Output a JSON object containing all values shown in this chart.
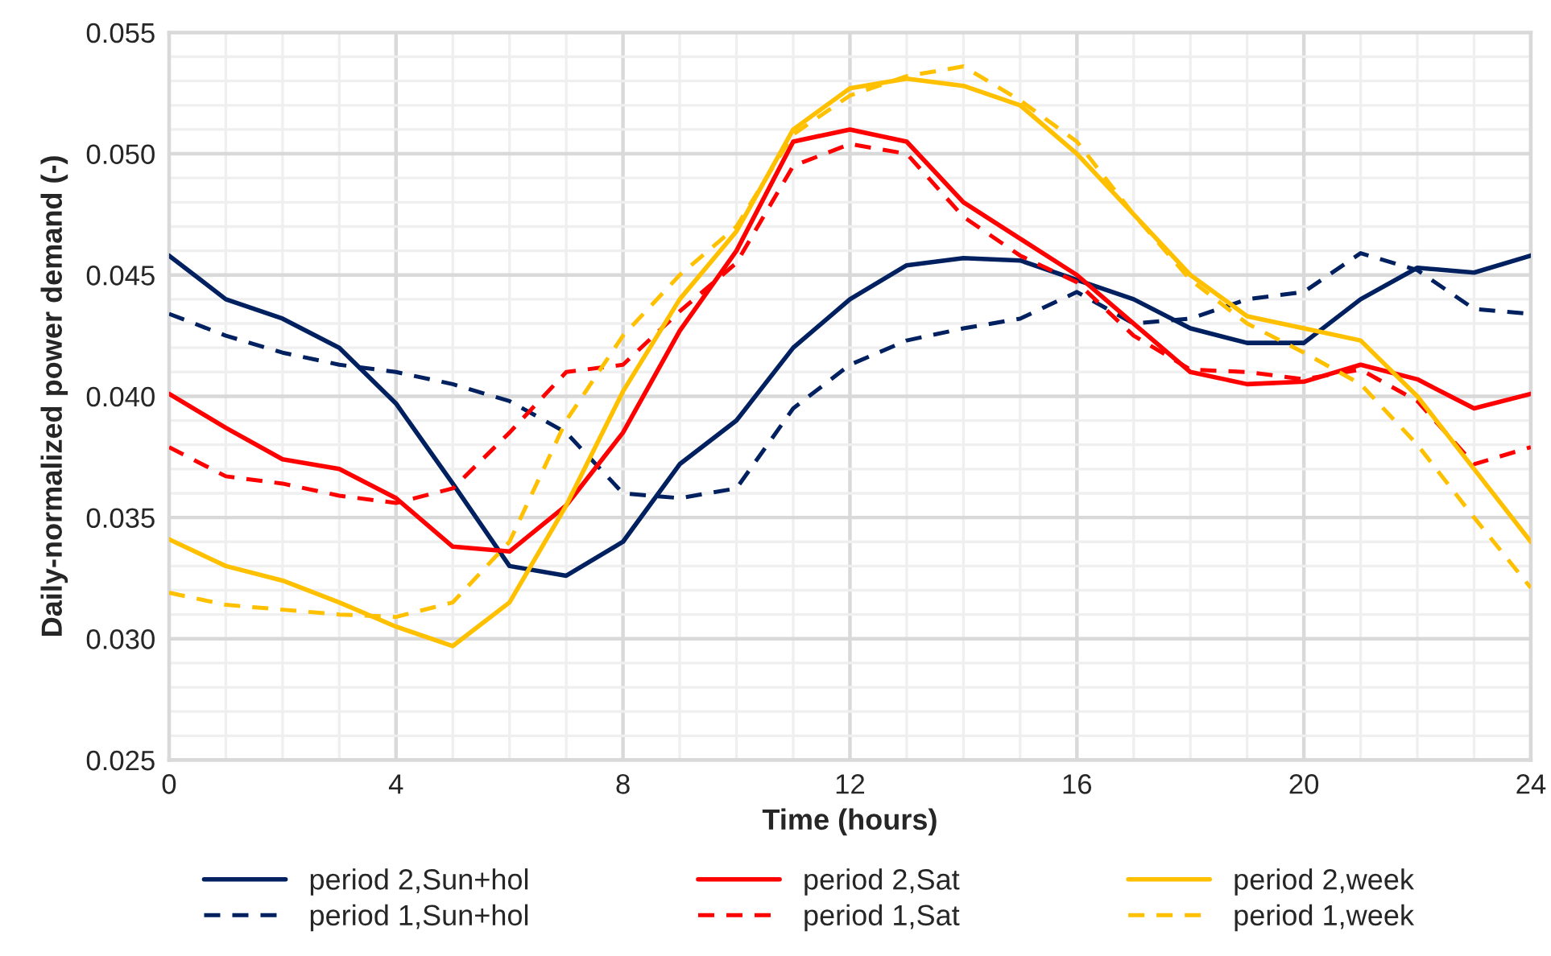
{
  "chart_data": {
    "type": "line",
    "xlabel": "Time (hours)",
    "ylabel": "Daily-normalized power demand (-)",
    "x": [
      0,
      1,
      2,
      3,
      4,
      5,
      6,
      7,
      8,
      9,
      10,
      11,
      12,
      13,
      14,
      15,
      16,
      17,
      18,
      19,
      20,
      21,
      22,
      23,
      24
    ],
    "series": [
      {
        "name": "period 2,Sun+hol",
        "color": "#002060",
        "line_style": "solid",
        "values": [
          0.0458,
          0.044,
          0.0432,
          0.042,
          0.0397,
          0.0364,
          0.033,
          0.0326,
          0.034,
          0.0372,
          0.039,
          0.042,
          0.044,
          0.0454,
          0.0457,
          0.0456,
          0.0448,
          0.044,
          0.0428,
          0.0422,
          0.0422,
          0.044,
          0.0453,
          0.0451,
          0.0458
        ]
      },
      {
        "name": "period 1,Sun+hol",
        "color": "#002060",
        "line_style": "dashed",
        "values": [
          0.0434,
          0.0425,
          0.0418,
          0.0413,
          0.041,
          0.0405,
          0.0398,
          0.0385,
          0.036,
          0.0358,
          0.0362,
          0.0395,
          0.0413,
          0.0423,
          0.0428,
          0.0432,
          0.0443,
          0.043,
          0.0432,
          0.044,
          0.0443,
          0.0459,
          0.0452,
          0.0436,
          0.0434
        ]
      },
      {
        "name": "period 2,Sat",
        "color": "#ff0000",
        "line_style": "solid",
        "values": [
          0.0401,
          0.0387,
          0.0374,
          0.037,
          0.0358,
          0.0338,
          0.0336,
          0.0355,
          0.0385,
          0.0427,
          0.046,
          0.0505,
          0.051,
          0.0505,
          0.048,
          0.0465,
          0.045,
          0.043,
          0.041,
          0.0405,
          0.0406,
          0.0413,
          0.0407,
          0.0395,
          0.0401
        ]
      },
      {
        "name": "period 1,Sat",
        "color": "#ff0000",
        "line_style": "dashed",
        "values": [
          0.0379,
          0.0367,
          0.0364,
          0.0359,
          0.0356,
          0.0362,
          0.0385,
          0.041,
          0.0413,
          0.0435,
          0.0455,
          0.0495,
          0.0504,
          0.05,
          0.0474,
          0.0458,
          0.0447,
          0.0425,
          0.0411,
          0.041,
          0.0407,
          0.0411,
          0.0398,
          0.0372,
          0.0379
        ]
      },
      {
        "name": "period 2,week",
        "color": "#ffc000",
        "line_style": "solid",
        "values": [
          0.0341,
          0.033,
          0.0324,
          0.0315,
          0.0305,
          0.0297,
          0.0315,
          0.0355,
          0.0402,
          0.044,
          0.0468,
          0.051,
          0.0527,
          0.0531,
          0.0528,
          0.052,
          0.05,
          0.0475,
          0.045,
          0.0433,
          0.0428,
          0.0423,
          0.04,
          0.037,
          0.034
        ]
      },
      {
        "name": "period 1,week",
        "color": "#ffc000",
        "line_style": "dashed",
        "values": [
          0.0319,
          0.0314,
          0.0312,
          0.031,
          0.0309,
          0.0315,
          0.034,
          0.039,
          0.0425,
          0.045,
          0.047,
          0.0508,
          0.0524,
          0.0532,
          0.0536,
          0.0522,
          0.0505,
          0.0475,
          0.0448,
          0.043,
          0.0418,
          0.0405,
          0.038,
          0.035,
          0.0321
        ]
      }
    ],
    "xlim": [
      0,
      24
    ],
    "xticks": [
      0,
      {
        "value": 1,
        "label": null
      },
      {
        "value": 2,
        "label": null
      },
      {
        "value": 3,
        "label": null
      },
      4,
      {
        "value": 5,
        "label": null
      },
      {
        "value": 6,
        "label": null
      },
      {
        "value": 7,
        "label": null
      },
      8,
      {
        "value": 9,
        "label": null
      },
      {
        "value": 10,
        "label": null
      },
      {
        "value": 11,
        "label": null
      },
      12,
      {
        "value": 13,
        "label": null
      },
      {
        "value": 14,
        "label": null
      },
      {
        "value": 15,
        "label": null
      },
      16,
      {
        "value": 17,
        "label": null
      },
      {
        "value": 18,
        "label": null
      },
      {
        "value": 19,
        "label": null
      },
      20,
      {
        "value": 21,
        "label": null
      },
      {
        "value": 22,
        "label": null
      },
      {
        "value": 23,
        "label": null
      },
      24
    ],
    "ylim": [
      0.025,
      0.055
    ],
    "yticks": [
      0.025,
      {
        "value": 0.026,
        "label": null
      },
      {
        "value": 0.027,
        "label": null
      },
      {
        "value": 0.028,
        "label": null
      },
      {
        "value": 0.029,
        "label": null
      },
      {
        "value": 0.03,
        "label": "0.030"
      },
      {
        "value": 0.031,
        "label": null
      },
      {
        "value": 0.032,
        "label": null
      },
      {
        "value": 0.033,
        "label": null
      },
      {
        "value": 0.034,
        "label": null
      },
      0.035,
      {
        "value": 0.036,
        "label": null
      },
      {
        "value": 0.037,
        "label": null
      },
      {
        "value": 0.038,
        "label": null
      },
      {
        "value": 0.039,
        "label": null
      },
      {
        "value": 0.04,
        "label": "0.040"
      },
      {
        "value": 0.041,
        "label": null
      },
      {
        "value": 0.042,
        "label": null
      },
      {
        "value": 0.043,
        "label": null
      },
      {
        "value": 0.044,
        "label": null
      },
      0.045,
      {
        "value": 0.046,
        "label": null
      },
      {
        "value": 0.047,
        "label": null
      },
      {
        "value": 0.048,
        "label": null
      },
      {
        "value": 0.049,
        "label": null
      },
      {
        "value": 0.05,
        "label": "0.050"
      },
      {
        "value": 0.051,
        "label": null
      },
      {
        "value": 0.052,
        "label": null
      },
      {
        "value": 0.053,
        "label": null
      },
      {
        "value": 0.054,
        "label": null
      },
      0.055
    ],
    "grid": true,
    "legend": "bottom"
  }
}
